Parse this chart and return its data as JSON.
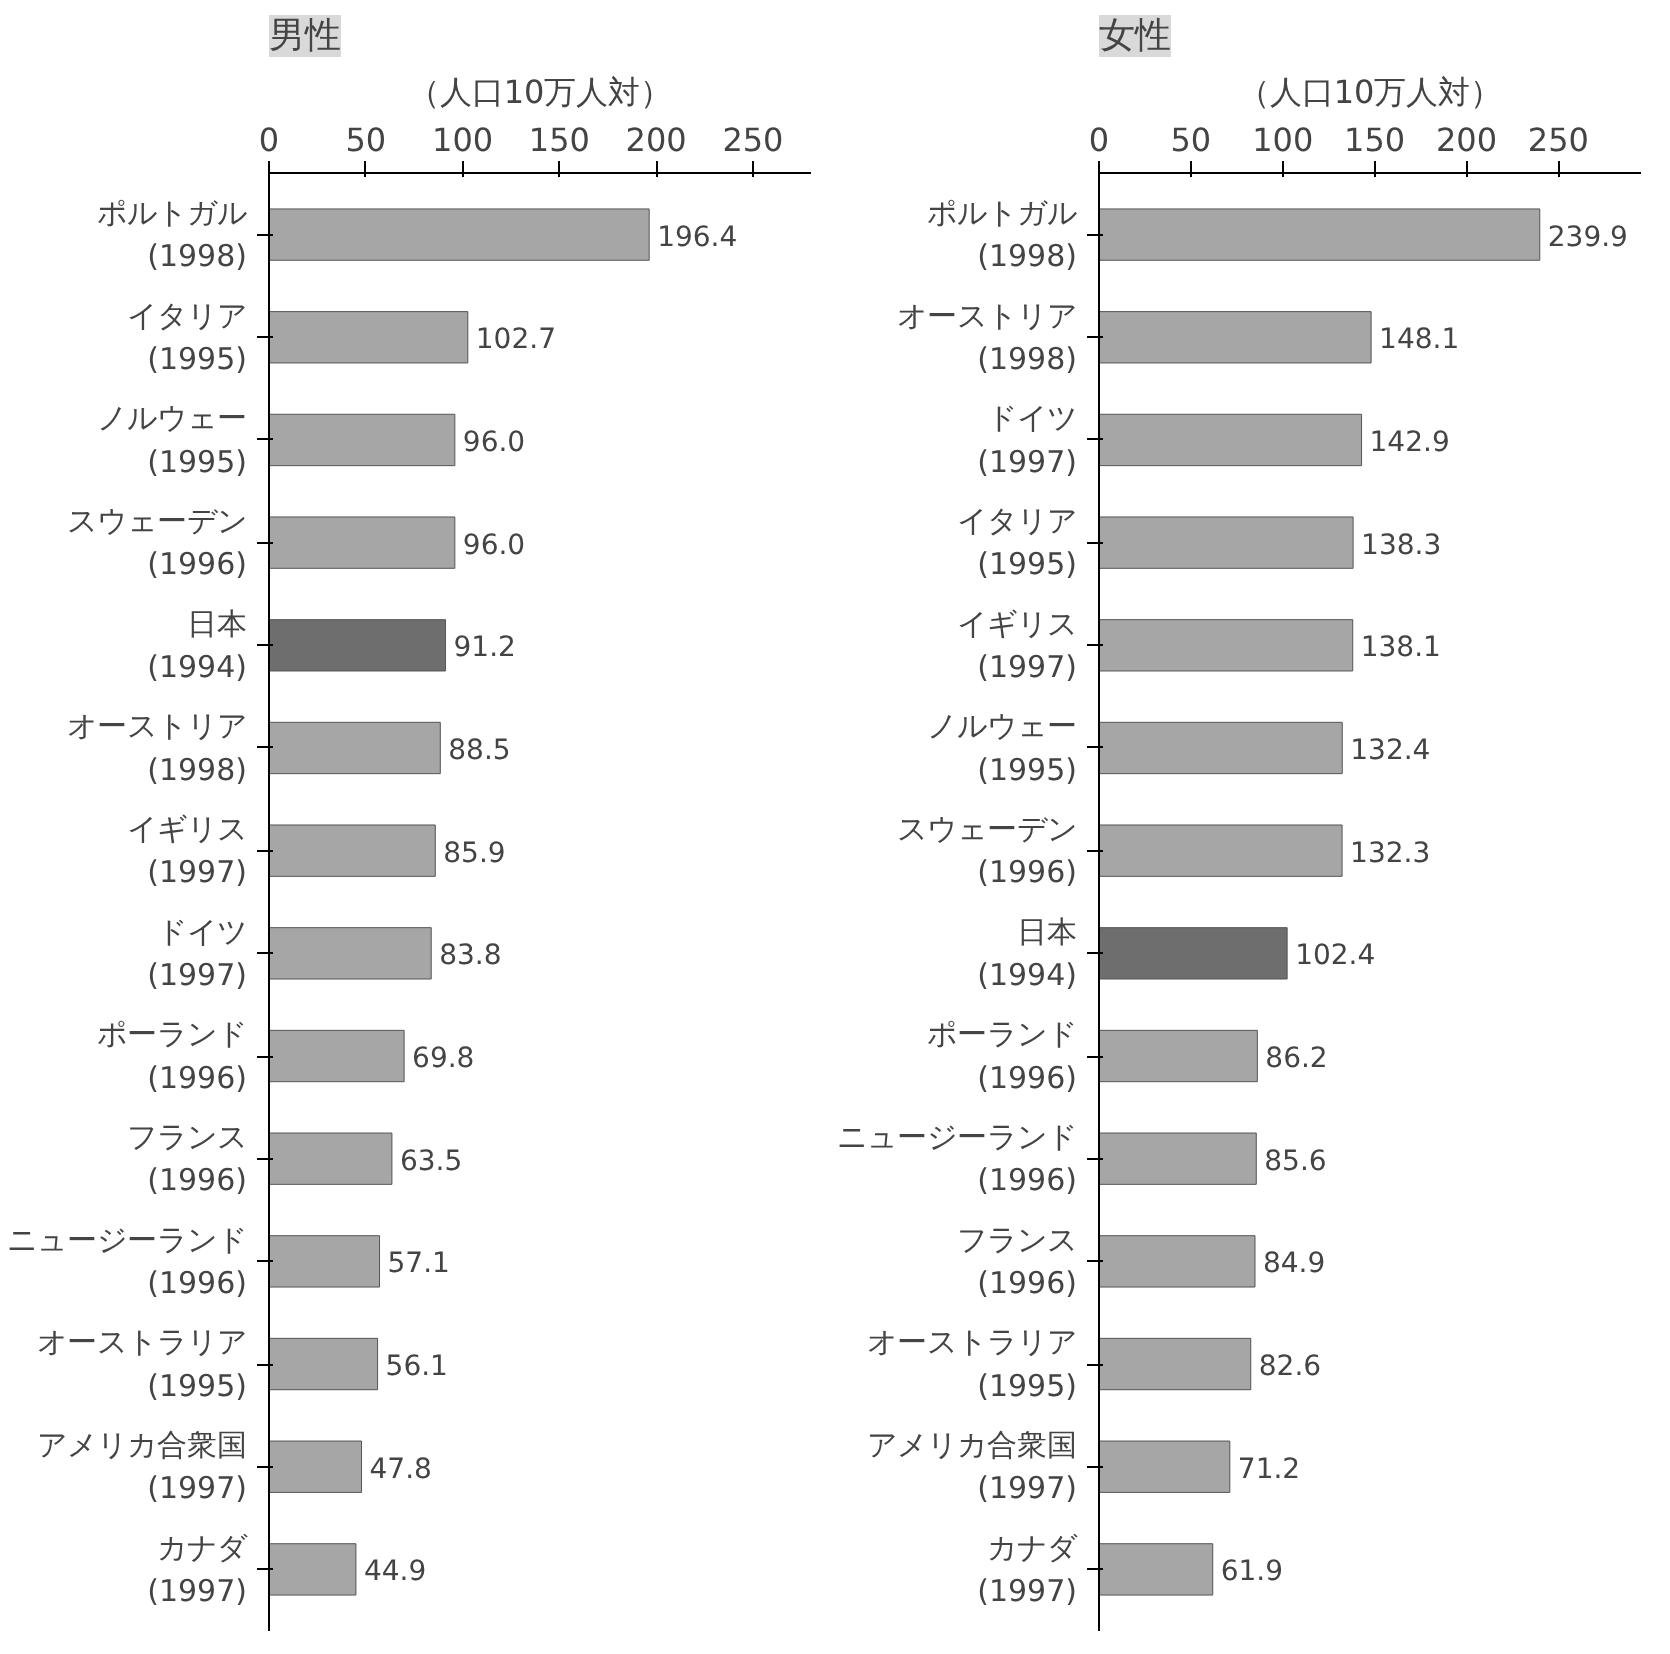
{
  "chart_data": [
    {
      "type": "bar",
      "orientation": "horizontal",
      "title": "男性",
      "xlabel": "（人口10万人対）",
      "categories": [
        "ポルトガル\n(1998)",
        "イタリア\n(1995)",
        "ノルウェー\n(1995)",
        "スウェーデン\n(1996)",
        "日本\n(1994)",
        "オーストリア\n(1998)",
        "イギリス\n(1997)",
        "ドイツ\n(1997)",
        "ポーランド\n(1996)",
        "フランス\n(1996)",
        "ニュージーランド\n(1996)",
        "オーストラリア\n(1995)",
        "アメリカ合衆国\n(1997)",
        "カナダ\n(1997)"
      ],
      "values": [
        196.4,
        102.7,
        96.0,
        96.0,
        91.2,
        88.5,
        85.9,
        83.8,
        69.8,
        63.5,
        57.1,
        56.1,
        47.8,
        44.9
      ],
      "value_labels": [
        "196.4",
        "102.7",
        "96.0",
        "96.0",
        "91.2",
        "88.5",
        "85.9",
        "83.8",
        "69.8",
        "63.5",
        "57.1",
        "56.1",
        "47.8",
        "44.9"
      ],
      "colors": [
        "#a6a6a6",
        "#a6a6a6",
        "#a6a6a6",
        "#a6a6a6",
        "#6e6e6e",
        "#a6a6a6",
        "#a6a6a6",
        "#a6a6a6",
        "#a6a6a6",
        "#a6a6a6",
        "#a6a6a6",
        "#a6a6a6",
        "#a6a6a6",
        "#a6a6a6"
      ],
      "xlim": [
        0,
        280
      ],
      "xticks": [
        0,
        50,
        100,
        150,
        200,
        250
      ],
      "grid": false
    },
    {
      "type": "bar",
      "orientation": "horizontal",
      "title": "女性",
      "xlabel": "（人口10万人対）",
      "categories": [
        "ポルトガル\n(1998)",
        "オーストリア\n(1998)",
        "ドイツ\n(1997)",
        "イタリア\n(1995)",
        "イギリス\n(1997)",
        "ノルウェー\n(1995)",
        "スウェーデン\n(1996)",
        "日本\n(1994)",
        "ポーランド\n(1996)",
        "ニュージーランド\n(1996)",
        "フランス\n(1996)",
        "オーストラリア\n(1995)",
        "アメリカ合衆国\n(1997)",
        "カナダ\n(1997)"
      ],
      "values": [
        239.9,
        148.1,
        142.9,
        138.3,
        138.1,
        132.4,
        132.3,
        102.4,
        86.2,
        85.6,
        84.9,
        82.6,
        71.2,
        61.9
      ],
      "value_labels": [
        "239.9",
        "148.1",
        "142.9",
        "138.3",
        "138.1",
        "132.4",
        "132.3",
        "102.4",
        "86.2",
        "85.6",
        "84.9",
        "82.6",
        "71.2",
        "61.9"
      ],
      "colors": [
        "#a6a6a6",
        "#a6a6a6",
        "#a6a6a6",
        "#a6a6a6",
        "#a6a6a6",
        "#a6a6a6",
        "#a6a6a6",
        "#6e6e6e",
        "#a6a6a6",
        "#a6a6a6",
        "#a6a6a6",
        "#a6a6a6",
        "#a6a6a6",
        "#a6a6a6"
      ],
      "xlim": [
        0,
        295
      ],
      "xticks": [
        0,
        50,
        100,
        150,
        200,
        250
      ],
      "grid": false
    }
  ]
}
